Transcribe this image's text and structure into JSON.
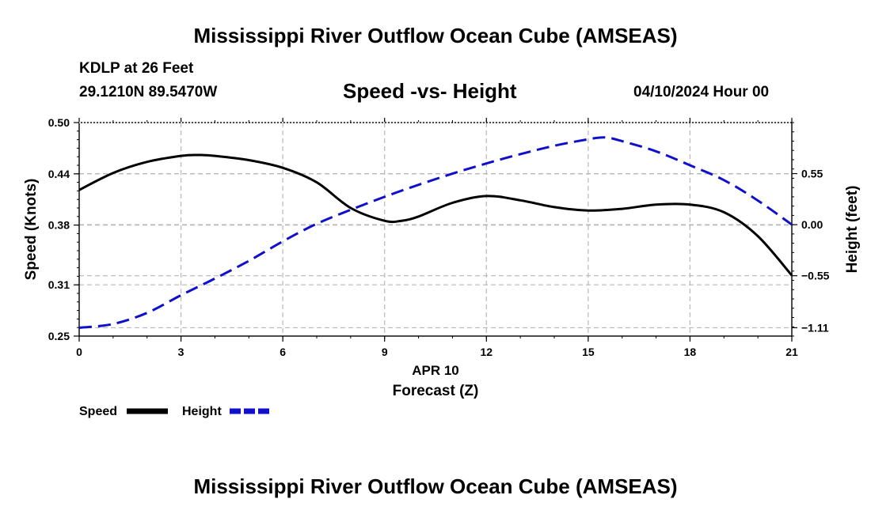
{
  "header": {
    "title": "Mississippi River Outflow Ocean Cube (AMSEAS)",
    "station": "KDLP at 26 Feet",
    "coordinates": "29.1210N  89.5470W",
    "subtitle": "Speed -vs- Height",
    "datetime": "04/10/2024 Hour 00"
  },
  "footer": {
    "title": "Mississippi River Outflow Ocean Cube (AMSEAS)"
  },
  "chart_data": {
    "type": "line",
    "title": "Speed -vs- Height",
    "xlabel": "Forecast (Z)",
    "date_label": "APR 10",
    "ylabel": "Speed (Knots)",
    "y2label": "Height (feet)",
    "xlim": [
      0,
      21
    ],
    "ylim": [
      0.25,
      0.5
    ],
    "y2lim": [
      -1.2,
      1.1
    ],
    "x_ticks": [
      "0",
      "3",
      "6",
      "9",
      "12",
      "15",
      "18",
      "21"
    ],
    "y_ticks": [
      "0.50",
      "0.44",
      "0.38",
      "0.31",
      "0.25"
    ],
    "y2_ticks": [
      "0.55",
      "0.00",
      "-0.55",
      "-1.11"
    ],
    "grid": true,
    "series": [
      {
        "name": "Speed",
        "axis": "left",
        "color": "#000000",
        "style": "solid",
        "x": [
          0,
          1,
          2,
          3,
          3.5,
          4,
          5,
          6,
          7,
          8,
          9,
          9.5,
          10,
          11,
          12,
          13,
          14,
          15,
          16,
          17,
          18,
          19,
          20,
          21
        ],
        "values": [
          0.421,
          0.441,
          0.454,
          0.461,
          0.462,
          0.461,
          0.456,
          0.447,
          0.43,
          0.4,
          0.385,
          0.385,
          0.39,
          0.406,
          0.414,
          0.409,
          0.401,
          0.397,
          0.399,
          0.404,
          0.404,
          0.395,
          0.367,
          0.321
        ]
      },
      {
        "name": "Height",
        "axis": "right",
        "color": "#1010cc",
        "style": "dashed",
        "x": [
          0,
          1,
          2,
          3,
          4,
          5,
          6,
          7,
          8,
          9,
          10,
          11,
          12,
          13,
          14,
          15,
          15.5,
          16,
          17,
          18,
          19,
          20,
          21
        ],
        "values": [
          -1.11,
          -1.07,
          -0.95,
          -0.76,
          -0.58,
          -0.39,
          -0.18,
          0.01,
          0.16,
          0.3,
          0.43,
          0.55,
          0.66,
          0.76,
          0.85,
          0.92,
          0.94,
          0.9,
          0.79,
          0.64,
          0.48,
          0.26,
          0.0
        ]
      }
    ],
    "legend": {
      "position": "bottom-left",
      "entries": [
        "Speed",
        "Height"
      ]
    }
  }
}
